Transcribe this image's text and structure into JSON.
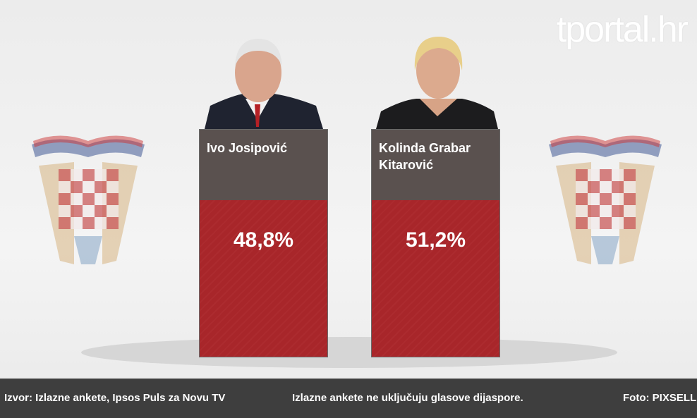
{
  "logo": "tportal.hr",
  "candidates": [
    {
      "name": "Ivo Josipović",
      "result": "48,8%"
    },
    {
      "name": "Kolinda Grabar Kitarović",
      "result": "51,2%"
    }
  ],
  "footer": {
    "source": "Izvor:  Izlazne ankete, Ipsos Puls za Novu TV",
    "note": "Izlazne ankete ne uključuju glasove dijaspore.",
    "photo": "Foto: PIXSELL"
  }
}
